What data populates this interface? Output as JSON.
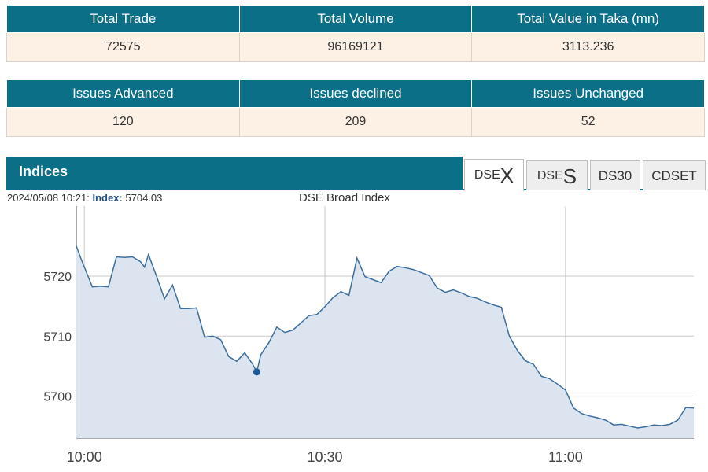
{
  "summary": {
    "headers": [
      "Total Trade",
      "Total Volume",
      "Total Value in Taka (mn)"
    ],
    "values": [
      "72575",
      "96169121",
      "3113.236"
    ]
  },
  "issues": {
    "headers": [
      "Issues Advanced",
      "Issues declined",
      "Issues Unchanged"
    ],
    "values": [
      "120",
      "209",
      "52"
    ]
  },
  "indices": {
    "title": "Indices",
    "tabs": [
      {
        "prefix": "DSE",
        "suffix": "X",
        "active": true
      },
      {
        "prefix": "DSE",
        "suffix": "S",
        "active": false
      },
      {
        "label": "DS30",
        "active": false
      },
      {
        "label": "CDSET",
        "active": false
      }
    ],
    "info": {
      "datetime": "2024/05/08 10:21:",
      "index_label": "Index:",
      "index_value": "5704.03"
    }
  },
  "colors": {
    "header_bg": "#0b6f88",
    "cell_bg": "#fdf1e6",
    "line": "#3c6ea0",
    "area": "#dce5ef",
    "marker": "#1c5a9a"
  },
  "chart_data": {
    "type": "area",
    "title": "DSE Broad Index",
    "xlabel": "",
    "ylabel": "",
    "x_unit": "minutes after 10:00",
    "x_ticks": [
      {
        "value": 0,
        "label": "10:00"
      },
      {
        "value": 30,
        "label": "10:30"
      },
      {
        "value": 60,
        "label": "11:00"
      }
    ],
    "y_ticks": [
      5700,
      5710,
      5720
    ],
    "xlim": [
      -1,
      76
    ],
    "ylim": [
      5693,
      5731
    ],
    "grid": true,
    "highlight": {
      "x": 21.5,
      "y": 5704.03
    },
    "series": [
      {
        "x": [
          -1,
          -0.3,
          1,
          2,
          3,
          4,
          5,
          6,
          7,
          7.5,
          8,
          9,
          10,
          11,
          12,
          13,
          14,
          15,
          16,
          17,
          18,
          19,
          20,
          21,
          21.5,
          22,
          23,
          24,
          25,
          26,
          27,
          28,
          29,
          30,
          31,
          32,
          33,
          34,
          35,
          36,
          37,
          38,
          39,
          40,
          41,
          42,
          43,
          44,
          45,
          46,
          47,
          48,
          49,
          50,
          51,
          52,
          53,
          54,
          55,
          56,
          57,
          58,
          59,
          60,
          61,
          62,
          63,
          64,
          65,
          66,
          67,
          68,
          69,
          70,
          71,
          72,
          73,
          74,
          75,
          76
        ],
        "y": [
          5725.0,
          5722.5,
          5718.2,
          5718.3,
          5718.2,
          5723.2,
          5723.1,
          5723.2,
          5722.4,
          5721.5,
          5723.6,
          5720.0,
          5716.2,
          5718.5,
          5714.6,
          5714.6,
          5714.7,
          5709.8,
          5710.0,
          5709.4,
          5706.6,
          5705.8,
          5707.2,
          5705.3,
          5704.03,
          5706.9,
          5708.9,
          5711.5,
          5710.6,
          5711.0,
          5712.2,
          5713.4,
          5713.6,
          5714.9,
          5716.4,
          5717.4,
          5716.8,
          5723.0,
          5719.9,
          5719.4,
          5718.9,
          5720.8,
          5721.6,
          5721.4,
          5721.1,
          5720.6,
          5720.1,
          5718.0,
          5717.3,
          5717.7,
          5717.2,
          5716.6,
          5716.3,
          5715.7,
          5715.2,
          5714.8,
          5710.0,
          5707.6,
          5705.9,
          5705.3,
          5703.3,
          5702.9,
          5702.0,
          5701.0,
          5698.0,
          5697.1,
          5696.7,
          5696.4,
          5696.0,
          5695.2,
          5695.3,
          5695.0,
          5694.7,
          5694.9,
          5695.2,
          5695.1,
          5695.3,
          5696.0,
          5698.1,
          5698.0
        ]
      }
    ]
  }
}
